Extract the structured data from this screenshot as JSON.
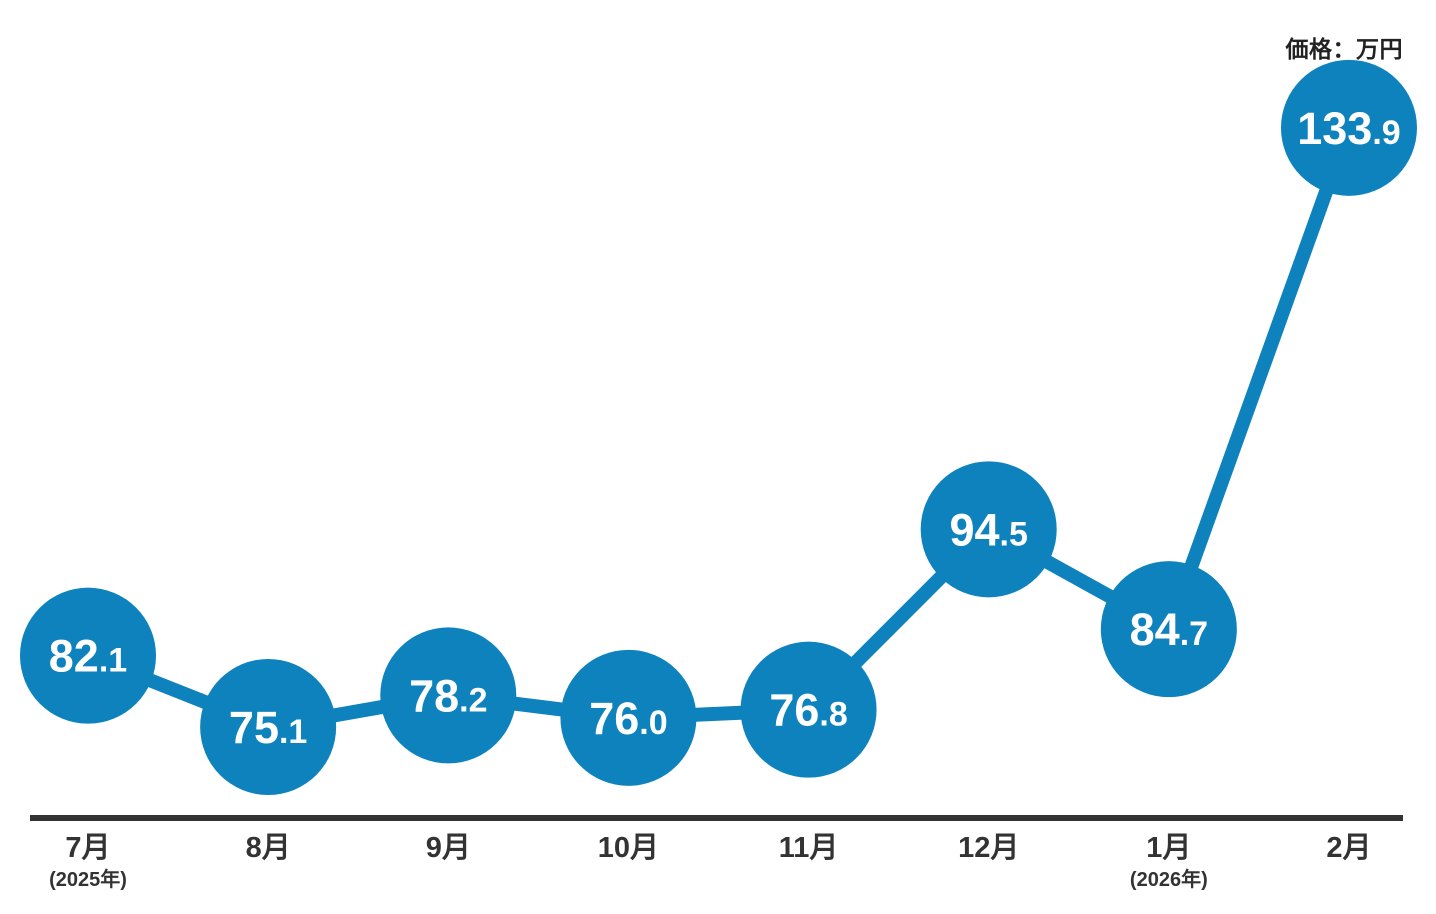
{
  "chart_data": {
    "type": "line",
    "title": "",
    "unit_label": "価格：万円",
    "series_name": "価格",
    "categories": [
      "7月",
      "8月",
      "9月",
      "10月",
      "11月",
      "12月",
      "1月",
      "2月"
    ],
    "category_sublabels": [
      "(2025年)",
      "",
      "",
      "",
      "",
      "",
      "(2026年)",
      ""
    ],
    "values": [
      82.1,
      75.1,
      78.2,
      76.0,
      76.8,
      94.5,
      84.7,
      133.9
    ],
    "xlabel": "",
    "ylabel": "価格（万円）",
    "ylim": [
      66,
      140
    ],
    "grid": false,
    "legend": "none",
    "marker_style": "large-filled-circle-with-value",
    "colors": {
      "point": "#0d82bd",
      "line": "#0d82bd",
      "value_text": "#ffffff",
      "axis": "#333333",
      "label_text": "#333333"
    }
  }
}
